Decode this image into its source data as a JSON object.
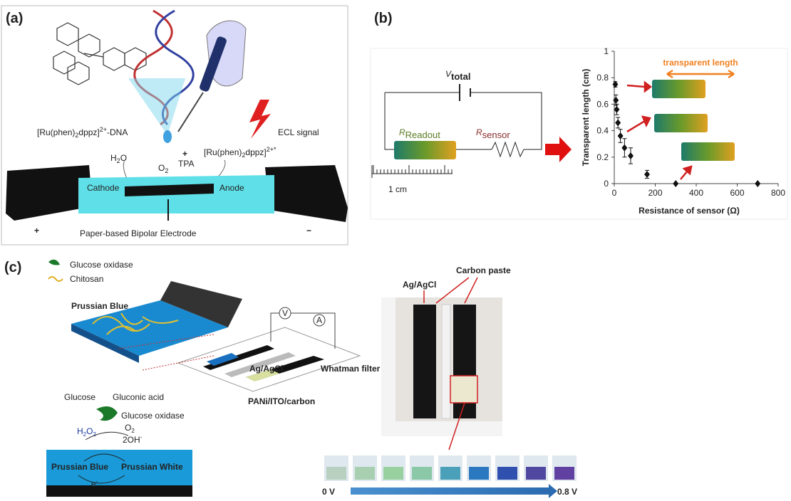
{
  "panels": {
    "a": {
      "label": "(a)",
      "complex_dna": [
        "[Ru(phen)",
        "2",
        "dppz]",
        "2+",
        "-DNA"
      ],
      "ecl": "ECL signal",
      "h2o": [
        "H",
        "2",
        "O"
      ],
      "o2": [
        "O",
        "2"
      ],
      "plus_small": "+",
      "tpa": "TPA",
      "excited": [
        "[Ru(phen)",
        "2",
        "dppz]",
        "2+*"
      ],
      "cathode": "Cathode",
      "anode": "Anode",
      "plus": "+",
      "minus": "−",
      "caption": "Paper-based Bipolar Electrode"
    },
    "b": {
      "label": "(b)",
      "v_total": [
        "V",
        "total"
      ],
      "r_readout": [
        "R",
        "Readout"
      ],
      "r_sensor": [
        "R",
        "sensor"
      ],
      "scale": "1 cm"
    },
    "c": {
      "label": "(c)",
      "gox": "Glucose oxidase",
      "chitosan": "Chitosan",
      "pb": "Prussian Blue",
      "v": "V",
      "a": "A",
      "agagcl": "Ag/AgCl",
      "whatman": "Whatman filter paper",
      "pani": "PANi/ITO/carbon",
      "glucose": "Glucose",
      "gluconic": "Gluconic acid",
      "gox2": "Glucose oxidase",
      "h2o2": [
        "H",
        "2",
        "O",
        "2"
      ],
      "o2": [
        "O",
        "2"
      ],
      "oh": [
        "2OH",
        "-"
      ],
      "pb2": "Prussian Blue",
      "pw": "Prussian White",
      "e": [
        "e",
        "-"
      ],
      "photo_agagcl": "Ag/AgCl",
      "carbon": "Carbon paste",
      "v0": "0 V",
      "v8": "0.8 V"
    }
  },
  "chart_data": {
    "type": "scatter",
    "annotation": "transparent length",
    "x_label": "Resistance of sensor (Ω)",
    "y_label": "Transparent  length (cm)",
    "x": [
      5,
      8,
      12,
      18,
      30,
      50,
      80,
      160,
      300,
      700
    ],
    "values": [
      0.75,
      0.63,
      0.56,
      0.46,
      0.36,
      0.27,
      0.21,
      0.07,
      0.0,
      0.0
    ],
    "errors": [
      0.02,
      0.04,
      0.04,
      0.04,
      0.05,
      0.07,
      0.06,
      0.03,
      0.0,
      0.0
    ],
    "color": "#111111",
    "xlim": [
      0,
      800
    ],
    "xticks": [
      0,
      200,
      400,
      600,
      800
    ],
    "ylim": [
      0,
      1
    ],
    "yticks": [
      0,
      0.2,
      0.4,
      0.6,
      0.8,
      1
    ]
  }
}
